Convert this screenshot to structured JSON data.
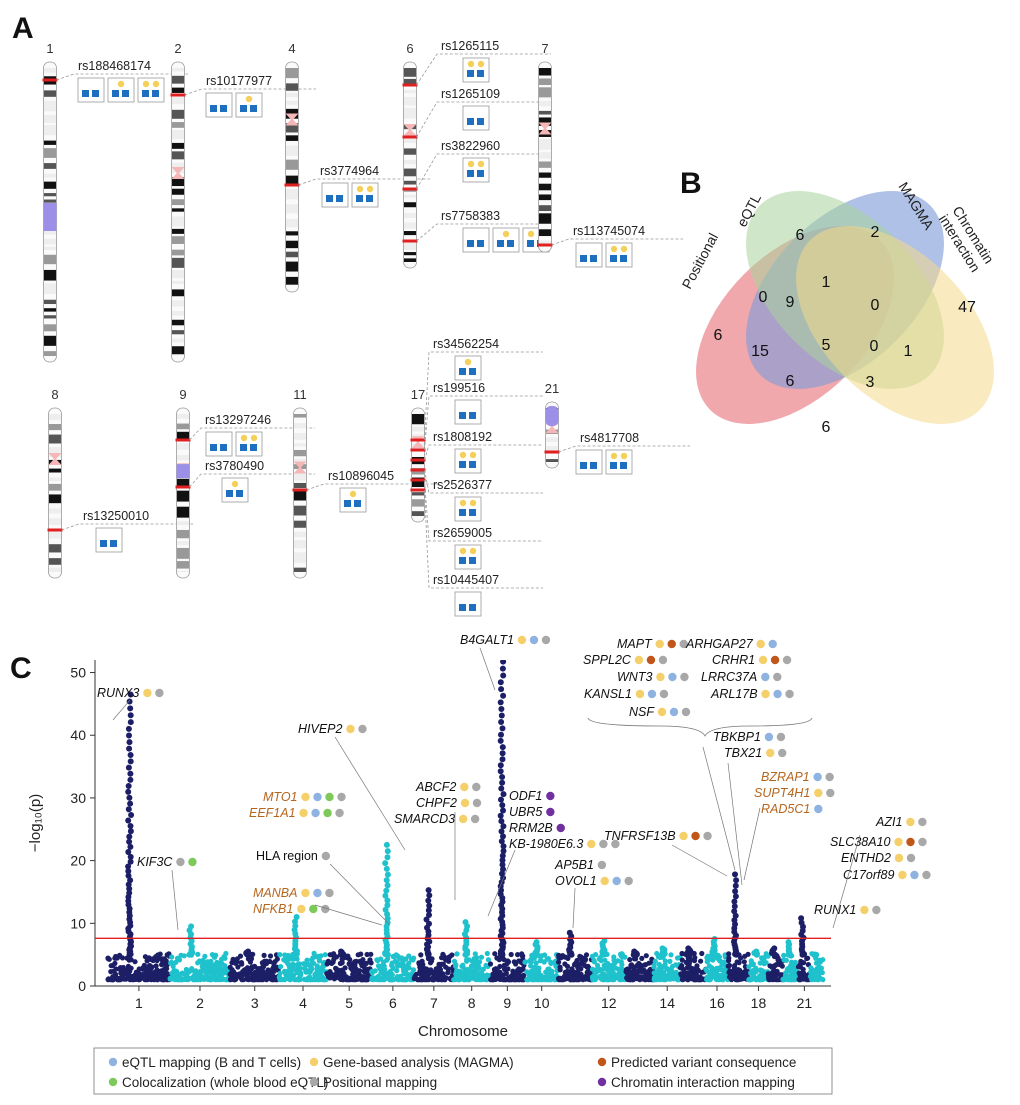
{
  "panels": {
    "a": "A",
    "b": "B",
    "c": "C"
  },
  "colors": {
    "eqtl": "#8fb3e0",
    "magma": "#f5cf6a",
    "consequence": "#c0561a",
    "coloc": "#7dc95a",
    "positional": "#a8a8a8",
    "chromatin": "#7030a0",
    "dark_points": "#1c1f66",
    "light_points": "#1fc2cc",
    "threshold": "#e02020",
    "tissue_icon": "#1f6fc0",
    "cell_icon": "#f4cf5a"
  },
  "panel_a": {
    "chromosomes": [
      {
        "label": "1",
        "snps": [
          {
            "rsid": "rs188468174"
          }
        ]
      },
      {
        "label": "2",
        "snps": [
          {
            "rsid": "rs10177977"
          }
        ]
      },
      {
        "label": "4",
        "snps": [
          {
            "rsid": "rs3774964"
          }
        ]
      },
      {
        "label": "6",
        "snps": [
          {
            "rsid": "rs1265115"
          },
          {
            "rsid": "rs1265109"
          },
          {
            "rsid": "rs3822960"
          },
          {
            "rsid": "rs7758383"
          }
        ]
      },
      {
        "label": "7",
        "snps": [
          {
            "rsid": "rs113745074"
          }
        ]
      },
      {
        "label": "8",
        "snps": [
          {
            "rsid": "rs13250010"
          }
        ]
      },
      {
        "label": "9",
        "snps": [
          {
            "rsid": "rs13297246"
          },
          {
            "rsid": "rs3780490"
          }
        ]
      },
      {
        "label": "11",
        "snps": [
          {
            "rsid": "rs10896045"
          }
        ]
      },
      {
        "label": "17",
        "snps": [
          {
            "rsid": "rs34562254"
          },
          {
            "rsid": "rs199516"
          },
          {
            "rsid": "rs1808192"
          },
          {
            "rsid": "rs2526377"
          },
          {
            "rsid": "rs2659005"
          },
          {
            "rsid": "rs10445407"
          }
        ]
      },
      {
        "label": "21",
        "snps": [
          {
            "rsid": "rs4817708"
          }
        ]
      }
    ]
  },
  "panel_b": {
    "sets": [
      "Positional",
      "eQTL",
      "MAGMA",
      "Chromatin interaction"
    ],
    "regions": [
      {
        "sets": [
          "eQTL"
        ],
        "count": 6
      },
      {
        "sets": [
          "MAGMA"
        ],
        "count": 2
      },
      {
        "sets": [
          "Positional"
        ],
        "count": 6
      },
      {
        "sets": [
          "Chromatin interaction"
        ],
        "count": 47
      },
      {
        "sets": [
          "Positional",
          "eQTL"
        ],
        "count": 0
      },
      {
        "sets": [
          "eQTL",
          "MAGMA"
        ],
        "count": 1
      },
      {
        "sets": [
          "MAGMA",
          "Chromatin interaction"
        ],
        "count": 0
      },
      {
        "sets": [
          "Positional",
          "eQTL",
          "MAGMA"
        ],
        "count": 9
      },
      {
        "sets": [
          "eQTL",
          "MAGMA",
          "Chromatin interaction"
        ],
        "count": 0
      },
      {
        "sets": [
          "Positional",
          "MAGMA"
        ],
        "count": 15
      },
      {
        "sets": [
          "Positional",
          "eQTL",
          "MAGMA",
          "Chromatin interaction"
        ],
        "count": 5
      },
      {
        "sets": [
          "eQTL",
          "Chromatin interaction"
        ],
        "count": 1
      },
      {
        "sets": [
          "Positional",
          "MAGMA",
          "Chromatin interaction"
        ],
        "count": 6
      },
      {
        "sets": [
          "Positional",
          "eQTL",
          "Chromatin interaction"
        ],
        "count": 3
      },
      {
        "sets": [
          "Positional",
          "Chromatin interaction"
        ],
        "count": 6
      }
    ]
  },
  "chart_data": {
    "type": "scatter",
    "subtype": "manhattan",
    "xlabel": "Chromosome",
    "ylabel": "−log₁₀(p)",
    "ylim": [
      0,
      52
    ],
    "yticks": [
      0,
      10,
      20,
      30,
      40,
      50
    ],
    "xticks": [
      "1",
      "2",
      "3",
      "4",
      "5",
      "6",
      "7",
      "8",
      "9",
      "10",
      "12",
      "14",
      "16",
      "18",
      "21"
    ],
    "threshold": 7.6,
    "chromosomes": [
      {
        "chr": 1,
        "peak": 46.5
      },
      {
        "chr": 2,
        "peak": 9.5
      },
      {
        "chr": 3,
        "peak": 5.5
      },
      {
        "chr": 4,
        "peak": 11.0
      },
      {
        "chr": 5,
        "peak": 5.5
      },
      {
        "chr": 6,
        "peak": 22.5
      },
      {
        "chr": 7,
        "peak": 15.3
      },
      {
        "chr": 8,
        "peak": 10.2
      },
      {
        "chr": 9,
        "peak": 54.0
      },
      {
        "chr": 10,
        "peak": 7.0
      },
      {
        "chr": 11,
        "peak": 8.5
      },
      {
        "chr": 12,
        "peak": 7.2
      },
      {
        "chr": 13,
        "peak": 5.5
      },
      {
        "chr": 14,
        "peak": 6.0
      },
      {
        "chr": 15,
        "peak": 6.0
      },
      {
        "chr": 16,
        "peak": 7.5
      },
      {
        "chr": 17,
        "peak": 17.8
      },
      {
        "chr": 18,
        "peak": 5.5
      },
      {
        "chr": 19,
        "peak": 6.0
      },
      {
        "chr": 20,
        "peak": 7.0
      },
      {
        "chr": 21,
        "peak": 10.8
      },
      {
        "chr": 22,
        "peak": 5.0
      }
    ],
    "annotations": [
      {
        "gene": "RUNX3",
        "highlight": false,
        "sources": [
          "magma",
          "positional"
        ]
      },
      {
        "gene": "KIF3C",
        "highlight": false,
        "sources": [
          "positional",
          "coloc"
        ]
      },
      {
        "gene": "MANBA",
        "highlight": true,
        "sources": [
          "magma",
          "eqtl",
          "positional"
        ]
      },
      {
        "gene": "NFKB1",
        "highlight": true,
        "sources": [
          "magma",
          "coloc",
          "positional"
        ]
      },
      {
        "gene": "HLA region",
        "highlight": false,
        "plain": true,
        "sources": [
          "positional"
        ]
      },
      {
        "gene": "MTO1",
        "highlight": true,
        "sources": [
          "magma",
          "eqtl",
          "coloc",
          "positional"
        ]
      },
      {
        "gene": "EEF1A1",
        "highlight": true,
        "sources": [
          "magma",
          "eqtl",
          "coloc",
          "positional"
        ]
      },
      {
        "gene": "HIVEP2",
        "highlight": false,
        "sources": [
          "magma",
          "positional"
        ]
      },
      {
        "gene": "ABCF2",
        "highlight": false,
        "sources": [
          "magma",
          "positional"
        ]
      },
      {
        "gene": "CHPF2",
        "highlight": false,
        "sources": [
          "magma",
          "positional"
        ]
      },
      {
        "gene": "SMARCD3",
        "highlight": false,
        "sources": [
          "magma",
          "positional"
        ]
      },
      {
        "gene": "B4GALT1",
        "highlight": false,
        "sources": [
          "magma",
          "eqtl",
          "positional"
        ]
      },
      {
        "gene": "ODF1",
        "highlight": false,
        "sources": [
          "chromatin"
        ]
      },
      {
        "gene": "UBR5",
        "highlight": false,
        "sources": [
          "chromatin"
        ]
      },
      {
        "gene": "RRM2B",
        "highlight": false,
        "sources": [
          "chromatin"
        ]
      },
      {
        "gene": "KB-1980E6.3",
        "highlight": false,
        "sources": [
          "magma",
          "positional",
          "positional"
        ]
      },
      {
        "gene": "AP5B1",
        "highlight": false,
        "sources": [
          "positional"
        ]
      },
      {
        "gene": "OVOL1",
        "highlight": false,
        "sources": [
          "magma",
          "eqtl",
          "positional"
        ]
      },
      {
        "gene": "TNFRSF13B",
        "highlight": false,
        "sources": [
          "magma",
          "consequence",
          "positional"
        ]
      },
      {
        "gene": "MAPT",
        "highlight": false,
        "sources": [
          "magma",
          "consequence",
          "positional"
        ]
      },
      {
        "gene": "SPPL2C",
        "highlight": false,
        "sources": [
          "magma",
          "consequence",
          "positional"
        ]
      },
      {
        "gene": "WNT3",
        "highlight": false,
        "sources": [
          "magma",
          "eqtl",
          "positional"
        ]
      },
      {
        "gene": "KANSL1",
        "highlight": false,
        "sources": [
          "magma",
          "eqtl",
          "positional"
        ]
      },
      {
        "gene": "NSF",
        "highlight": false,
        "sources": [
          "magma",
          "eqtl",
          "positional"
        ]
      },
      {
        "gene": "ARHGAP27",
        "highlight": false,
        "sources": [
          "magma",
          "eqtl"
        ]
      },
      {
        "gene": "CRHR1",
        "highlight": false,
        "sources": [
          "magma",
          "consequence",
          "positional"
        ]
      },
      {
        "gene": "LRRC37A",
        "highlight": false,
        "sources": [
          "eqtl",
          "positional"
        ]
      },
      {
        "gene": "ARL17B",
        "highlight": false,
        "sources": [
          "magma",
          "eqtl",
          "positional"
        ]
      },
      {
        "gene": "TBKBP1",
        "highlight": false,
        "sources": [
          "eqtl",
          "positional"
        ]
      },
      {
        "gene": "TBX21",
        "highlight": false,
        "sources": [
          "magma",
          "positional"
        ]
      },
      {
        "gene": "BZRAP1",
        "highlight": true,
        "sources": [
          "eqtl",
          "positional"
        ]
      },
      {
        "gene": "SUPT4H1",
        "highlight": true,
        "sources": [
          "magma",
          "positional"
        ]
      },
      {
        "gene": "RAD5C1",
        "highlight": true,
        "sources": [
          "eqtl"
        ]
      },
      {
        "gene": "AZI1",
        "highlight": false,
        "sources": [
          "magma",
          "positional"
        ]
      },
      {
        "gene": "SLC38A10",
        "highlight": false,
        "sources": [
          "magma",
          "consequence",
          "positional"
        ]
      },
      {
        "gene": "ENTHD2",
        "highlight": false,
        "sources": [
          "magma",
          "positional"
        ]
      },
      {
        "gene": "C17orf89",
        "highlight": false,
        "sources": [
          "magma",
          "eqtl",
          "positional"
        ]
      },
      {
        "gene": "RUNX1",
        "highlight": false,
        "sources": [
          "magma",
          "positional"
        ]
      }
    ],
    "legend": [
      {
        "key": "eqtl",
        "label": "eQTL mapping (B and T cells)"
      },
      {
        "key": "magma",
        "label": "Gene-based analysis (MAGMA)"
      },
      {
        "key": "consequence",
        "label": "Predicted variant consequence"
      },
      {
        "key": "coloc",
        "label": "Colocalization (whole blood eQTL)"
      },
      {
        "key": "positional",
        "label": "Positional mapping"
      },
      {
        "key": "chromatin",
        "label": "Chromatin interaction mapping"
      }
    ]
  }
}
